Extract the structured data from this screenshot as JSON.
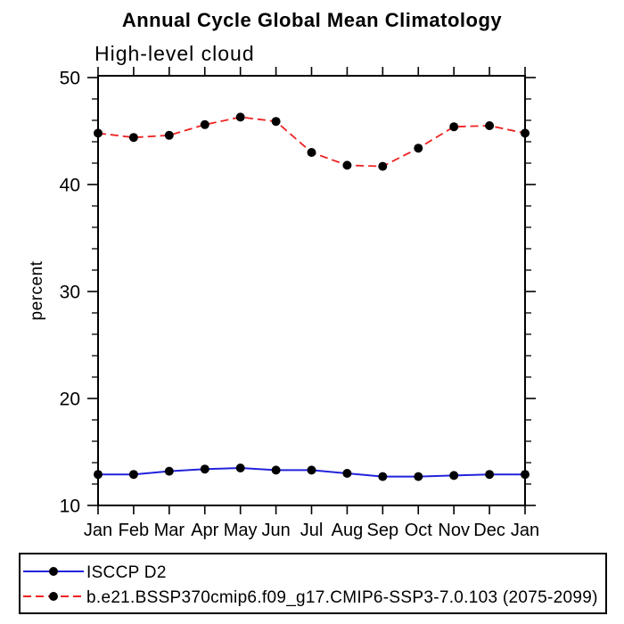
{
  "chart_data": {
    "type": "line",
    "title": "Annual Cycle Global Mean Climatology",
    "subtitle": "High-level cloud",
    "xlabel": "",
    "ylabel": "percent",
    "categories": [
      "Jan",
      "Feb",
      "Mar",
      "Apr",
      "May",
      "Jun",
      "Jul",
      "Aug",
      "Sep",
      "Oct",
      "Nov",
      "Dec",
      "Jan"
    ],
    "ylim": [
      10,
      50
    ],
    "yticks_major": [
      10,
      20,
      30,
      40,
      50
    ],
    "yticks_minor_step": 2,
    "grid": false,
    "frame": "box with outward ticks on all four sides",
    "legend_position": "bottom-left framed box below plot",
    "series": [
      {
        "name": "ISCCP D2",
        "color": "#2222dd",
        "line_style": "solid",
        "marker": "filled-circle",
        "marker_color": "#000000",
        "values": [
          12.9,
          12.9,
          13.2,
          13.4,
          13.5,
          13.3,
          13.3,
          13.0,
          12.7,
          12.7,
          12.8,
          12.9,
          12.9
        ]
      },
      {
        "name": "b.e21.BSSP370cmip6.f09_g17.CMIP6-SSP3-7.0.103 (2075-2099)",
        "color": "#f02020",
        "line_style": "dashed",
        "marker": "filled-circle",
        "marker_color": "#000000",
        "values": [
          44.8,
          44.4,
          44.6,
          45.6,
          46.3,
          45.9,
          43.0,
          41.8,
          41.7,
          43.4,
          45.4,
          45.5,
          44.8
        ]
      }
    ],
    "colors": {
      "axis": "#000000",
      "text": "#000000",
      "background": "#ffffff"
    }
  }
}
